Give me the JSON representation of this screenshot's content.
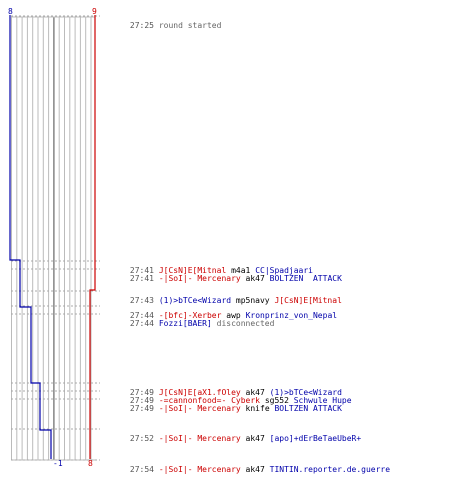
{
  "colors": {
    "blue": "#0000aa",
    "red": "#cc0000",
    "system": "#666666",
    "time": "#555555",
    "grid": "#bbbbbb",
    "dash": "#aaaaaa",
    "center": "#666666"
  },
  "scores": {
    "left_top": "8",
    "right_top": "9",
    "left_bottom": "-1",
    "right_bottom": "8"
  },
  "events": [
    {
      "time": "27:25",
      "actor": "",
      "actor_team": "",
      "weapon": "round started",
      "victim": "",
      "victim_team": "",
      "system": true
    },
    {
      "time": "27:41",
      "actor": "J[CsN]E[Mitnal",
      "actor_team": "red",
      "weapon": "m4a1",
      "victim": "CC|Spadjaari",
      "victim_team": "blue",
      "system": false
    },
    {
      "time": "27:41",
      "actor": "-|SoI|- Mercenary",
      "actor_team": "red",
      "weapon": "ak47",
      "victim": "BOLTZEN  ATTACK",
      "victim_team": "blue",
      "system": false
    },
    {
      "time": "27:43",
      "actor": "(1)>bTCe<Wizard",
      "actor_team": "blue",
      "weapon": "mp5navy",
      "victim": "J[CsN]E[Mitnal",
      "victim_team": "red",
      "system": false
    },
    {
      "time": "27:44",
      "actor": "-[bfc]-Xerber",
      "actor_team": "red",
      "weapon": "awp",
      "victim": "Kronprinz_von_Nepal",
      "victim_team": "blue",
      "system": false
    },
    {
      "time": "27:44",
      "actor": "Fozzi[BAER]",
      "actor_team": "blue",
      "weapon": "disconnected",
      "victim": "",
      "victim_team": "",
      "system": false,
      "status": true
    },
    {
      "time": "27:49",
      "actor": "J[CsN]E[aX1.fOley",
      "actor_team": "red",
      "weapon": "ak47",
      "victim": "(1)>bTCe<Wizard",
      "victim_team": "blue",
      "system": false
    },
    {
      "time": "27:49",
      "actor": "-=cannonfood=- Cyberk",
      "actor_team": "red",
      "weapon": "sg552",
      "victim": "Schwule Hupe",
      "victim_team": "blue",
      "system": false
    },
    {
      "time": "27:49",
      "actor": "-|SoI|- Mercenary",
      "actor_team": "red",
      "weapon": "knife",
      "victim": "BOLTZEN ATTACK",
      "victim_team": "blue",
      "system": false
    },
    {
      "time": "27:52",
      "actor": "-|SoI|- Mercenary",
      "actor_team": "red",
      "weapon": "ak47",
      "victim": "[apo]+dErBeTaeUbeR+",
      "victim_team": "blue",
      "system": false
    },
    {
      "time": "27:54",
      "actor": "-|SoI|- Mercenary",
      "actor_team": "red",
      "weapon": "ak47",
      "victim": "TINTIN.reporter.de.guerre",
      "victim_team": "blue",
      "system": false
    }
  ]
}
